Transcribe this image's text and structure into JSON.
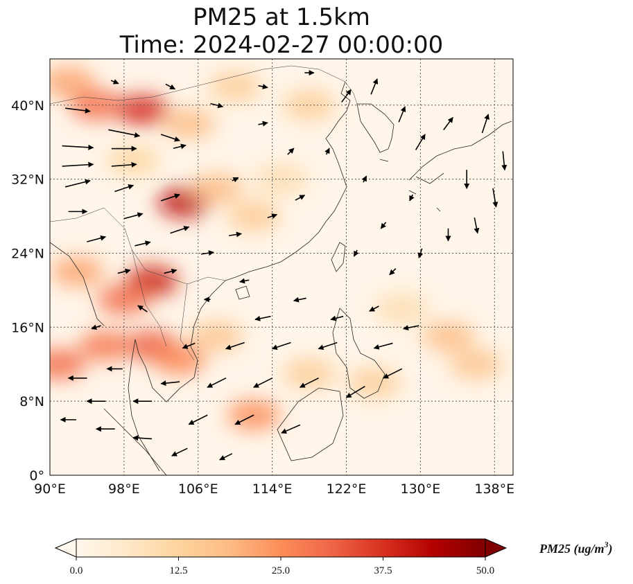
{
  "title": {
    "line1": "PM25 at 1.5km",
    "line2": "Time: 2024-02-27 00:00:00"
  },
  "map": {
    "lon_range": [
      90,
      140
    ],
    "lat_range": [
      0,
      45
    ],
    "lon_ticks": [
      {
        "value": 90,
        "label": "90°E"
      },
      {
        "value": 98,
        "label": "98°E"
      },
      {
        "value": 106,
        "label": "106°E"
      },
      {
        "value": 114,
        "label": "114°E"
      },
      {
        "value": 122,
        "label": "122°E"
      },
      {
        "value": 130,
        "label": "130°E"
      },
      {
        "value": 138,
        "label": "138°E"
      }
    ],
    "lat_ticks": [
      {
        "value": 0,
        "label": "0°"
      },
      {
        "value": 8,
        "label": "8°N"
      },
      {
        "value": 16,
        "label": "16°N"
      },
      {
        "value": 24,
        "label": "24°N"
      },
      {
        "value": 32,
        "label": "32°N"
      },
      {
        "value": 40,
        "label": "40°N"
      }
    ],
    "gridlines": true,
    "pollution_hotspots": [
      {
        "lon": 95,
        "lat": 40,
        "pm25": 30
      },
      {
        "lon": 100,
        "lat": 39.5,
        "pm25": 38
      },
      {
        "lon": 92,
        "lat": 42.5,
        "pm25": 22
      },
      {
        "lon": 105,
        "lat": 38,
        "pm25": 18
      },
      {
        "lon": 104.5,
        "lat": 29.5,
        "pm25": 42
      },
      {
        "lon": 108,
        "lat": 31,
        "pm25": 18
      },
      {
        "lon": 112,
        "lat": 28,
        "pm25": 15
      },
      {
        "lon": 101,
        "lat": 21,
        "pm25": 40
      },
      {
        "lon": 98,
        "lat": 19,
        "pm25": 30
      },
      {
        "lon": 96,
        "lat": 14,
        "pm25": 28
      },
      {
        "lon": 101,
        "lat": 14,
        "pm25": 32
      },
      {
        "lon": 104,
        "lat": 12.5,
        "pm25": 26
      },
      {
        "lon": 91,
        "lat": 12,
        "pm25": 30
      },
      {
        "lon": 93,
        "lat": 22,
        "pm25": 22
      },
      {
        "lon": 108,
        "lat": 15,
        "pm25": 16
      },
      {
        "lon": 112,
        "lat": 6.5,
        "pm25": 25
      },
      {
        "lon": 118,
        "lat": 11,
        "pm25": 14
      },
      {
        "lon": 125,
        "lat": 10,
        "pm25": 14
      },
      {
        "lon": 133,
        "lat": 15,
        "pm25": 18
      },
      {
        "lon": 136,
        "lat": 12,
        "pm25": 16
      },
      {
        "lon": 128,
        "lat": 18,
        "pm25": 10
      },
      {
        "lon": 118,
        "lat": 40,
        "pm25": 14
      },
      {
        "lon": 110,
        "lat": 42,
        "pm25": 14
      },
      {
        "lon": 99,
        "lat": 34,
        "pm25": 12
      },
      {
        "lon": 115,
        "lat": 32,
        "pm25": 10
      }
    ],
    "wind_vectors": [
      {
        "lon": 93,
        "lat": 39.5,
        "u": 4,
        "v": -0.5
      },
      {
        "lon": 98,
        "lat": 37,
        "u": 5,
        "v": -1
      },
      {
        "lon": 103,
        "lat": 36.5,
        "u": 3,
        "v": -1
      },
      {
        "lon": 93,
        "lat": 35.5,
        "u": 5,
        "v": -0.3
      },
      {
        "lon": 98,
        "lat": 35.3,
        "u": 4,
        "v": 0
      },
      {
        "lon": 104,
        "lat": 35.5,
        "u": 2,
        "v": 0.5
      },
      {
        "lon": 93,
        "lat": 33.5,
        "u": 5,
        "v": 0.3
      },
      {
        "lon": 98,
        "lat": 33.5,
        "u": 4,
        "v": 0.3
      },
      {
        "lon": 93,
        "lat": 31.5,
        "u": 4,
        "v": 1
      },
      {
        "lon": 98,
        "lat": 31,
        "u": 3,
        "v": 1
      },
      {
        "lon": 103,
        "lat": 30,
        "u": 3,
        "v": 1
      },
      {
        "lon": 93,
        "lat": 28.5,
        "u": 3,
        "v": 0
      },
      {
        "lon": 99,
        "lat": 28,
        "u": 3,
        "v": 0.8
      },
      {
        "lon": 104,
        "lat": 26.5,
        "u": 3,
        "v": 1
      },
      {
        "lon": 95,
        "lat": 25.5,
        "u": 3,
        "v": 0.8
      },
      {
        "lon": 100,
        "lat": 25,
        "u": 2.5,
        "v": 0.6
      },
      {
        "lon": 98,
        "lat": 22,
        "u": 2,
        "v": 0.5
      },
      {
        "lon": 103,
        "lat": 22,
        "u": 2,
        "v": 0.5
      },
      {
        "lon": 107,
        "lat": 24,
        "u": 2,
        "v": 0.3
      },
      {
        "lon": 110,
        "lat": 26,
        "u": 2,
        "v": 0.3
      },
      {
        "lon": 114,
        "lat": 28,
        "u": 1.5,
        "v": 0.5
      },
      {
        "lon": 117,
        "lat": 30,
        "u": 1.5,
        "v": 0.8
      },
      {
        "lon": 122,
        "lat": 41,
        "u": 1.5,
        "v": 2
      },
      {
        "lon": 125,
        "lat": 42,
        "u": 1,
        "v": 2.5
      },
      {
        "lon": 128,
        "lat": 39,
        "u": 1,
        "v": 2.5
      },
      {
        "lon": 130,
        "lat": 36,
        "u": 1.5,
        "v": 2.5
      },
      {
        "lon": 133,
        "lat": 38,
        "u": 1.5,
        "v": 2
      },
      {
        "lon": 137,
        "lat": 38,
        "u": 1,
        "v": 3
      },
      {
        "lon": 135,
        "lat": 32,
        "u": 0,
        "v": -3
      },
      {
        "lon": 138,
        "lat": 30,
        "u": 0.5,
        "v": -3
      },
      {
        "lon": 136,
        "lat": 27,
        "u": 0.5,
        "v": -2.5
      },
      {
        "lon": 139,
        "lat": 34,
        "u": 0.3,
        "v": -3
      },
      {
        "lon": 133,
        "lat": 26,
        "u": 0,
        "v": -2
      },
      {
        "lon": 130,
        "lat": 24,
        "u": -0.5,
        "v": -1.5
      },
      {
        "lon": 127,
        "lat": 22,
        "u": -1,
        "v": -1
      },
      {
        "lon": 125,
        "lat": 18,
        "u": -1.5,
        "v": -0.8
      },
      {
        "lon": 121,
        "lat": 17,
        "u": -2,
        "v": -0.5
      },
      {
        "lon": 117,
        "lat": 19,
        "u": -2,
        "v": -0.4
      },
      {
        "lon": 113,
        "lat": 17,
        "u": -2.5,
        "v": -0.5
      },
      {
        "lon": 110,
        "lat": 14,
        "u": -3,
        "v": -1
      },
      {
        "lon": 115,
        "lat": 14,
        "u": -3,
        "v": -1
      },
      {
        "lon": 120,
        "lat": 14,
        "u": -3,
        "v": -1
      },
      {
        "lon": 126,
        "lat": 14,
        "u": -3,
        "v": -0.8
      },
      {
        "lon": 129,
        "lat": 16,
        "u": -2.5,
        "v": -0.5
      },
      {
        "lon": 108,
        "lat": 10,
        "u": -3,
        "v": -1.5
      },
      {
        "lon": 113,
        "lat": 10,
        "u": -3,
        "v": -1.5
      },
      {
        "lon": 118,
        "lat": 10,
        "u": -3,
        "v": -1.5
      },
      {
        "lon": 123,
        "lat": 9,
        "u": -3,
        "v": -1.8
      },
      {
        "lon": 127,
        "lat": 11,
        "u": -3,
        "v": -1.5
      },
      {
        "lon": 106,
        "lat": 6,
        "u": -3,
        "v": -1.5
      },
      {
        "lon": 111,
        "lat": 6,
        "u": -3,
        "v": -1.5
      },
      {
        "lon": 116,
        "lat": 5,
        "u": -3,
        "v": -1.3
      },
      {
        "lon": 104,
        "lat": 2.5,
        "u": -2.5,
        "v": -1.2
      },
      {
        "lon": 109,
        "lat": 2,
        "u": -2,
        "v": -1
      },
      {
        "lon": 100,
        "lat": 8,
        "u": -3,
        "v": 0
      },
      {
        "lon": 95,
        "lat": 8,
        "u": -3,
        "v": 0
      },
      {
        "lon": 92,
        "lat": 6,
        "u": -2.5,
        "v": 0
      },
      {
        "lon": 96,
        "lat": 5,
        "u": -3,
        "v": 0
      },
      {
        "lon": 100,
        "lat": 4,
        "u": -3,
        "v": 0.2
      },
      {
        "lon": 93,
        "lat": 10.5,
        "u": -3,
        "v": 0
      },
      {
        "lon": 97,
        "lat": 11.5,
        "u": -2.5,
        "v": 0
      },
      {
        "lon": 103,
        "lat": 10,
        "u": -3,
        "v": -0.3
      },
      {
        "lon": 105,
        "lat": 14,
        "u": -2,
        "v": -0.8
      },
      {
        "lon": 95,
        "lat": 16,
        "u": -1.5,
        "v": -0.5
      },
      {
        "lon": 100,
        "lat": 18,
        "u": -1.5,
        "v": 1
      },
      {
        "lon": 107,
        "lat": 19,
        "u": -1,
        "v": 0
      },
      {
        "lon": 111,
        "lat": 21,
        "u": -1.5,
        "v": -0.3
      },
      {
        "lon": 123,
        "lat": 24,
        "u": -0.5,
        "v": -1
      },
      {
        "lon": 126,
        "lat": 27,
        "u": -0.8,
        "v": -1
      },
      {
        "lon": 129,
        "lat": 30,
        "u": -0.5,
        "v": -1
      },
      {
        "lon": 124,
        "lat": 32,
        "u": 0.5,
        "v": 1
      },
      {
        "lon": 120,
        "lat": 35,
        "u": 0.5,
        "v": 1
      },
      {
        "lon": 113,
        "lat": 38,
        "u": 1.5,
        "v": 0.3
      },
      {
        "lon": 108,
        "lat": 40,
        "u": 2,
        "v": -0.5
      },
      {
        "lon": 113,
        "lat": 42,
        "u": 1.5,
        "v": -0.3
      },
      {
        "lon": 118,
        "lat": 43.5,
        "u": 1.5,
        "v": 0
      },
      {
        "lon": 103,
        "lat": 42,
        "u": 1.5,
        "v": -0.8
      },
      {
        "lon": 97,
        "lat": 42.5,
        "u": 1.2,
        "v": -0.5
      },
      {
        "lon": 110,
        "lat": 32,
        "u": 1,
        "v": 0.5
      },
      {
        "lon": 116,
        "lat": 35,
        "u": 1,
        "v": 1
      }
    ]
  },
  "colorbar": {
    "min": 0,
    "max": 50,
    "ticks": [
      "0.0",
      "12.5",
      "25.0",
      "37.5",
      "50.0"
    ],
    "label_main": "PM25 (ug/m",
    "label_sup": "3",
    "label_close": ")",
    "colormap": "OrRd",
    "colors": [
      "#fff7ec",
      "#fee8c8",
      "#fdd49e",
      "#fdbb84",
      "#fc8d59",
      "#ef6548",
      "#d7301f",
      "#b30000",
      "#7f0000"
    ]
  }
}
